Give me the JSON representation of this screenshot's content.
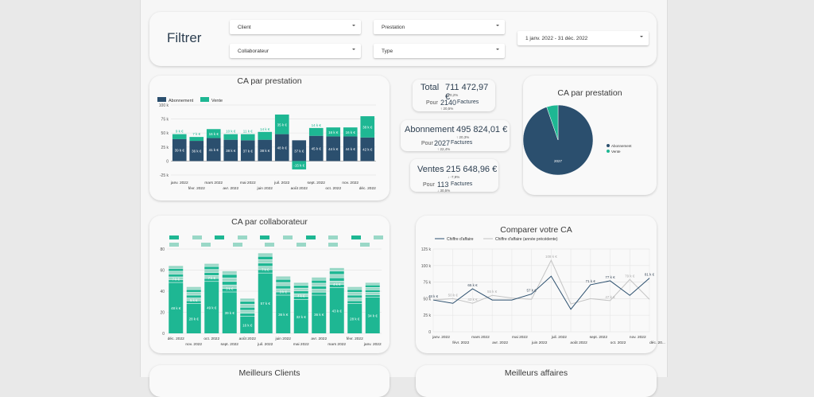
{
  "filter": {
    "title": "Filtrer",
    "client_label": "Client",
    "prestation_label": "Prestation",
    "date_range": "1 janv. 2022 - 31 déc. 2022",
    "collaborateur_label": "Collaborateur",
    "type_label": "Type"
  },
  "chart_prestation": {
    "title": "CA par prestation",
    "legend": [
      "Abonnement",
      "Vente"
    ]
  },
  "kpis": [
    {
      "label": "Total",
      "value": "711 472,97 €",
      "delta": "↑ 10,2%",
      "pour": "Pour",
      "count": "2140",
      "factures": "Factures",
      "count_delta": "↑ 20,5%"
    },
    {
      "label": "Abonnement",
      "value": "495 824,01 €",
      "delta": "↑ 20,3%",
      "pour": "Pour",
      "count": "2027",
      "factures": "Factures",
      "count_delta": "↑ 22,4%"
    },
    {
      "label": "Ventes",
      "value": "215 648,96 €",
      "delta": "↓ -7,9%",
      "pour": "Pour",
      "count": "113",
      "factures": "Factures",
      "count_delta": "↓ 30,5%"
    }
  ],
  "pie": {
    "title": "CA par prestation",
    "legend": [
      "Abonnement",
      "Vente"
    ],
    "center_label": "2027"
  },
  "collab": {
    "title": "CA par collaborateur"
  },
  "compare": {
    "title": "Comparer votre CA",
    "legend": [
      "Chiffre d'affaire",
      "Chiffre d'affaire (année précédente)"
    ]
  },
  "bottom": {
    "clients_title": "Meilleurs Clients",
    "affaires_title": "Meilleurs affaires"
  },
  "colors": {
    "abonnement": "#2b4f6e",
    "vente": "#1eb793",
    "collab": "#1eb793",
    "collab_light": "#9ad8c7",
    "grid": "#e6e6e6",
    "prev_year": "#c4c4c4"
  },
  "chart_data": [
    {
      "type": "bar",
      "stacked": true,
      "title": "CA par prestation",
      "categories": [
        "janv. 2022",
        "févr. 2022",
        "mars 2022",
        "avr. 2022",
        "mai 2022",
        "juin 2022",
        "juil. 2022",
        "août 2022",
        "sept. 2022",
        "oct. 2022",
        "nov. 2022",
        "déc. 2022"
      ],
      "tick_labels_top": [
        "janv. 2022",
        "mars 2022",
        "mai 2022",
        "juil. 2022",
        "sept. 2022",
        "nov. 2022"
      ],
      "tick_labels_bottom": [
        "févr. 2022",
        "avr. 2022",
        "juin 2022",
        "août 2022",
        "oct. 2022",
        "déc. 2022"
      ],
      "series": [
        {
          "name": "Abonnement",
          "values": [
            39,
            36,
            41,
            38,
            37,
            38,
            48,
            37,
            45,
            44,
            44,
            42
          ],
          "labels": [
            "39 k €",
            "36 k €",
            "41 k €",
            "38 k €",
            "37 k €",
            "38 k €",
            "48 k €",
            "37 k €",
            "45 k €",
            "44 k €",
            "44 k €",
            "42 k €"
          ]
        },
        {
          "name": "Vente",
          "values": [
            9,
            7,
            16,
            10,
            11,
            14,
            35,
            -15,
            14,
            16,
            16,
            38
          ],
          "labels": [
            "9 k €",
            "7 k €",
            "16 k €",
            "10 k €",
            "11 k €",
            "14 k €",
            "35 k €",
            "-15 k €",
            "14 k €",
            "16 k €",
            "16 k €",
            "38 k €"
          ]
        }
      ],
      "yticks": [
        "100 k",
        "75 k",
        "50 k",
        "25 k",
        "0",
        "-25 k"
      ],
      "ylim": [
        -25,
        100
      ],
      "legend_position": "top-left"
    },
    {
      "type": "pie",
      "title": "CA par prestation",
      "slices": [
        {
          "name": "Abonnement",
          "value": 2027
        },
        {
          "name": "Vente",
          "value": 113
        }
      ],
      "legend_position": "right"
    },
    {
      "type": "bar",
      "stacked": true,
      "title": "CA par collaborateur",
      "categories": [
        "déc. 2022",
        "nov. 2022",
        "oct. 2022",
        "sept. 2022",
        "août 2022",
        "juil. 2022",
        "juin 2022",
        "mai 2022",
        "avr. 2022",
        "mars 2022",
        "févr. 2022",
        "janv. 2022"
      ],
      "tick_labels_top": [
        "déc. 2022",
        "oct. 2022",
        "août 2022",
        "juin 2022",
        "avr. 2022",
        "févr. 2022"
      ],
      "tick_labels_bottom": [
        "nov. 2022",
        "sept. 2022",
        "juil. 2022",
        "mai 2022",
        "mars 2022",
        "janv. 2022"
      ],
      "base_values": [
        48,
        28,
        49,
        39,
        16,
        57,
        36,
        32,
        36,
        43,
        28,
        34
      ],
      "base_labels": [
        "48 k €",
        "28 k €",
        "49 k €",
        "39 k €",
        "16 k €",
        "57 k €",
        "36 k €",
        "32 k €",
        "36 k €",
        "43 k €",
        "28 k €",
        "34 k €"
      ],
      "second_labels": [
        "7 k €",
        "5 k €",
        "7 k €",
        "3 k €",
        "",
        "7 k €",
        "3 k €",
        "4 k €",
        "",
        "4 k €",
        "",
        ""
      ],
      "totals": [
        64,
        44,
        66,
        59,
        33,
        76,
        54,
        48,
        53,
        62,
        44,
        48
      ],
      "yticks": [
        "80",
        "60",
        "40",
        "20",
        "0"
      ],
      "ylim": [
        0,
        80
      ]
    },
    {
      "type": "line",
      "title": "Comparer votre CA",
      "x": [
        "janv. 2022",
        "févr. 2022",
        "mars 2022",
        "avr. 2022",
        "mai 2022",
        "juin 2022",
        "juil. 2022",
        "août 2022",
        "sept. 2022",
        "oct. 2022",
        "nov. 2022",
        "déc. 2022"
      ],
      "tick_labels_top": [
        "janv. 2022",
        "mars 2022",
        "mai 2022",
        "juil. 2022",
        "sept. 2022",
        "nov. 2022"
      ],
      "tick_labels_bottom": [
        "févr. 2022",
        "avr. 2022",
        "juin 2022",
        "août 2022",
        "oct. 2022",
        "déc. 20..."
      ],
      "series": [
        {
          "name": "Chiffre d'affaire",
          "values": [
            48,
            43,
            65,
            48,
            48,
            57,
            84,
            34,
            71,
            77,
            55,
            81
          ],
          "labels": [
            "48 k €",
            "",
            "65 k €",
            "",
            "",
            "57 k €",
            "",
            "",
            "71 k €",
            "77 k €",
            "",
            "81 k €"
          ]
        },
        {
          "name": "Chiffre d'affaire (année précédente)",
          "values": [
            48,
            50,
            43,
            55,
            51,
            49,
            108,
            42,
            50,
            47,
            79,
            49
          ],
          "labels": [
            "",
            "50 k €",
            "43 k €",
            "55 k €",
            "",
            "",
            "108 k €",
            "",
            "",
            "47 k €",
            "79 k €",
            ""
          ]
        }
      ],
      "yticks": [
        "125 k",
        "100 k",
        "75 k",
        "50 k",
        "25 k",
        "0"
      ],
      "ylim": [
        0,
        125
      ],
      "grid": true,
      "legend_position": "top"
    }
  ]
}
